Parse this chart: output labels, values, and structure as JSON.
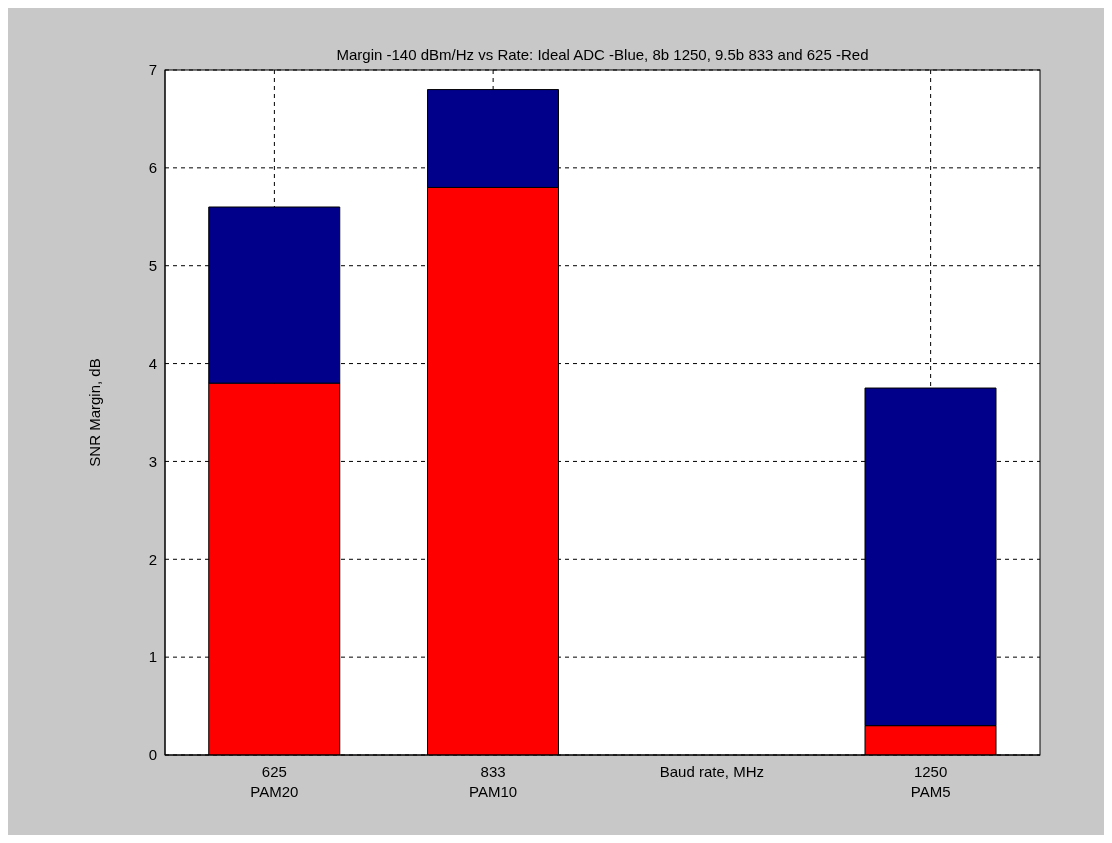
{
  "chart_data": {
    "type": "bar",
    "title": "Margin -140 dBm/Hz vs Rate: Ideal ADC -Blue, 8b 1250, 9.5b 833 and 625 -Red",
    "xlabel": "Baud rate, MHz",
    "ylabel": "SNR Margin, dB",
    "categories": [
      "625\nPAM20",
      "833\nPAM10",
      null,
      "1250\nPAM5"
    ],
    "stacked": true,
    "series": [
      {
        "color": "#ff0000",
        "values": [
          3.8,
          5.8,
          null,
          0.3
        ]
      },
      {
        "color": "#00008b",
        "values": [
          1.8,
          1.0,
          null,
          3.45
        ]
      }
    ],
    "ylim": [
      0,
      7
    ],
    "yticks": [
      0,
      1,
      2,
      3,
      4,
      5,
      6,
      7
    ],
    "grid": true
  }
}
